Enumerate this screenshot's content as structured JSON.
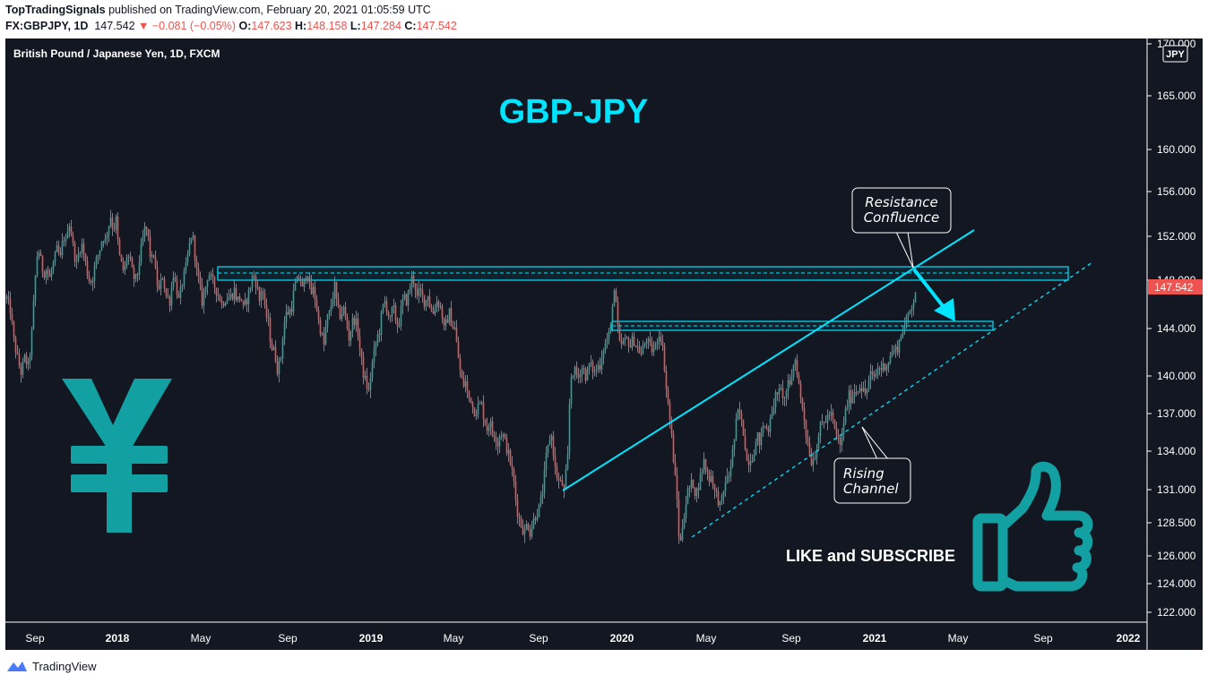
{
  "header": {
    "publisher": "TopTradingSignals",
    "published_text": "published on TradingView.com, February 20, 2021 01:05:59 UTC",
    "symbol": "FX:GBPJPY, 1D",
    "last": "147.542",
    "change": "▼ −0.081 (−0.05%)",
    "open_label": "O:",
    "open": "147.623",
    "high_label": "H:",
    "high": "148.158",
    "low_label": "L:",
    "low": "147.284",
    "close_label": "C:",
    "close": "147.542"
  },
  "footer": {
    "brand": "TradingView"
  },
  "colors": {
    "background": "#131722",
    "up": "#26a69a",
    "down": "#ef5350",
    "accent": "#00e5ff",
    "icon": "#13a0a3"
  },
  "chart_data": {
    "type": "candlestick",
    "title": "British Pound / Japanese Yen, 1D, FXCM",
    "headline": "GBP-JPY",
    "currency_badge": "JPY",
    "last_price_label": "147.542",
    "yticks": [
      "170.000",
      "165.000",
      "160.000",
      "156.000",
      "152.000",
      "148.000",
      "144.000",
      "140.000",
      "137.000",
      "134.000",
      "131.000",
      "128.500",
      "126.000",
      "124.000",
      "122.000"
    ],
    "xticks": [
      "Sep",
      "2018",
      "May",
      "Sep",
      "2019",
      "May",
      "Sep",
      "2020",
      "May",
      "Sep",
      "2021",
      "May",
      "Sep",
      "2022"
    ],
    "annotations": [
      {
        "text_line1": "Resistance",
        "text_line2": "Confluence"
      },
      {
        "text_line1": "Rising",
        "text_line2": "Channel"
      }
    ],
    "cta": "LIKE and SUBSCRIBE",
    "price_path": [
      [
        0,
        146.5
      ],
      [
        4,
        145.5
      ],
      [
        8,
        143
      ],
      [
        12,
        141.5
      ],
      [
        16,
        140.3
      ],
      [
        20,
        141.5
      ],
      [
        24,
        140.8
      ],
      [
        27,
        142.5
      ],
      [
        30,
        146
      ],
      [
        33,
        149.5
      ],
      [
        35,
        151
      ],
      [
        38,
        149.8
      ],
      [
        41,
        148.5
      ],
      [
        44,
        149
      ],
      [
        48,
        148.2
      ],
      [
        52,
        149.5
      ],
      [
        56,
        150.8
      ],
      [
        60,
        150
      ],
      [
        63,
        152
      ],
      [
        66,
        151.5
      ],
      [
        69,
        153.5
      ],
      [
        72,
        152.3
      ],
      [
        75,
        150.5
      ],
      [
        78,
        149.5
      ],
      [
        81,
        150.8
      ],
      [
        84,
        151.2
      ],
      [
        87,
        150
      ],
      [
        91,
        148.2
      ],
      [
        95,
        147.8
      ],
      [
        99,
        149.6
      ],
      [
        103,
        150.5
      ],
      [
        107,
        152
      ],
      [
        110,
        151.6
      ],
      [
        113,
        152.7
      ],
      [
        116,
        153.8
      ],
      [
        119,
        152.5
      ],
      [
        122,
        153.5
      ],
      [
        125,
        150.5
      ],
      [
        128,
        149.5
      ],
      [
        131,
        148.6
      ],
      [
        134,
        150.2
      ],
      [
        137,
        150
      ],
      [
        140,
        148.8
      ],
      [
        143,
        147.9
      ],
      [
        146,
        148.6
      ],
      [
        149,
        150.4
      ],
      [
        152,
        151.8
      ],
      [
        155,
        153
      ],
      [
        158,
        151.8
      ],
      [
        161,
        149.6
      ],
      [
        164,
        150.4
      ],
      [
        167,
        148
      ],
      [
        170,
        147.1
      ],
      [
        174,
        148.4
      ],
      [
        178,
        146.7
      ],
      [
        182,
        146.3
      ],
      [
        186,
        148.6
      ],
      [
        189,
        147.6
      ],
      [
        192,
        146.3
      ],
      [
        196,
        147.8
      ],
      [
        200,
        149.2
      ],
      [
        204,
        151.2
      ],
      [
        207,
        152.5
      ],
      [
        209,
        151
      ],
      [
        212,
        148.8
      ],
      [
        215,
        147.7
      ],
      [
        218,
        146.2
      ],
      [
        222,
        147.5
      ],
      [
        225,
        148.7
      ],
      [
        229,
        148
      ],
      [
        233,
        147.3
      ],
      [
        237,
        146.7
      ],
      [
        240,
        146
      ],
      [
        243,
        146.4
      ],
      [
        247,
        146.6
      ],
      [
        251,
        146.7
      ],
      [
        254,
        147.2
      ],
      [
        257,
        146.3
      ],
      [
        261,
        146.7
      ],
      [
        264,
        145.6
      ],
      [
        268,
        146.4
      ],
      [
        271,
        147.2
      ],
      [
        275,
        148.6
      ],
      [
        279,
        147.6
      ],
      [
        282,
        146.3
      ],
      [
        285,
        147.7
      ],
      [
        288,
        145.5
      ],
      [
        292,
        144.5
      ],
      [
        295,
        142.5
      ],
      [
        299,
        142
      ],
      [
        302,
        140.6
      ],
      [
        306,
        141.6
      ],
      [
        309,
        144.2
      ],
      [
        312,
        145.2
      ],
      [
        315,
        145.4
      ],
      [
        318,
        145.8
      ],
      [
        321,
        147.4
      ],
      [
        324,
        147.9
      ],
      [
        327,
        148.4
      ],
      [
        330,
        147.2
      ],
      [
        333,
        148.2
      ],
      [
        336,
        148.7
      ],
      [
        339,
        146.8
      ],
      [
        342,
        147.2
      ],
      [
        345,
        146.2
      ],
      [
        348,
        144.6
      ],
      [
        351,
        143.6
      ],
      [
        354,
        142.6
      ],
      [
        357,
        144.7
      ],
      [
        360,
        145.2
      ],
      [
        363,
        146.3
      ],
      [
        366,
        147.5
      ],
      [
        369,
        145.6
      ],
      [
        372,
        145.1
      ],
      [
        376,
        145.6
      ],
      [
        379,
        144.5
      ],
      [
        382,
        143.2
      ],
      [
        386,
        144.6
      ],
      [
        389,
        144.8
      ],
      [
        392,
        143.6
      ],
      [
        395,
        141.7
      ],
      [
        398,
        140.2
      ],
      [
        401,
        139.4
      ],
      [
        404,
        138.7
      ],
      [
        407,
        140.6
      ],
      [
        410,
        142
      ],
      [
        413,
        143.2
      ],
      [
        416,
        143.8
      ],
      [
        419,
        145.6
      ],
      [
        422,
        146.2
      ],
      [
        425,
        145.5
      ],
      [
        428,
        144.6
      ],
      [
        431,
        145.9
      ],
      [
        434,
        144.8
      ],
      [
        437,
        144.1
      ],
      [
        440,
        145.5
      ],
      [
        443,
        146.6
      ],
      [
        446,
        146.3
      ],
      [
        449,
        147
      ],
      [
        452,
        148.2
      ],
      [
        455,
        147.9
      ],
      [
        458,
        146.5
      ],
      [
        461,
        147.2
      ],
      [
        464,
        146.6
      ],
      [
        467,
        146.1
      ],
      [
        470,
        146.9
      ],
      [
        473,
        145.5
      ],
      [
        476,
        145.3
      ],
      [
        479,
        146.3
      ],
      [
        482,
        146.1
      ],
      [
        485,
        145.6
      ],
      [
        488,
        143.9
      ],
      [
        491,
        144.6
      ],
      [
        494,
        145.3
      ],
      [
        497,
        144.2
      ],
      [
        500,
        144
      ],
      [
        503,
        142.1
      ],
      [
        506,
        140.4
      ],
      [
        509,
        139.2
      ],
      [
        512,
        139.5
      ],
      [
        515,
        138.3
      ],
      [
        518,
        138.2
      ],
      [
        521,
        137.2
      ],
      [
        524,
        137.3
      ],
      [
        527,
        137.7
      ],
      [
        530,
        137.7
      ],
      [
        533,
        136.5
      ],
      [
        536,
        135.8
      ],
      [
        539,
        136.4
      ],
      [
        542,
        135.4
      ],
      [
        545,
        135.4
      ],
      [
        548,
        134.6
      ],
      [
        551,
        135.6
      ],
      [
        554,
        135.2
      ],
      [
        557,
        134.5
      ],
      [
        560,
        133.7
      ],
      [
        563,
        132.8
      ],
      [
        566,
        131.5
      ],
      [
        569,
        129.7
      ],
      [
        572,
        128.8
      ],
      [
        575,
        128.2
      ],
      [
        578,
        127.7
      ],
      [
        581,
        128.6
      ],
      [
        584,
        127.8
      ],
      [
        587,
        128.5
      ],
      [
        590,
        129.1
      ],
      [
        593,
        129.4
      ],
      [
        596,
        130.1
      ],
      [
        599,
        131.4
      ],
      [
        602,
        133.5
      ],
      [
        605,
        134.6
      ],
      [
        607,
        135.6
      ],
      [
        609,
        134.7
      ],
      [
        612,
        132.6
      ],
      [
        615,
        131.8
      ],
      [
        617,
        131.5
      ],
      [
        620,
        131.4
      ],
      [
        622,
        130.8
      ],
      [
        626,
        133.5
      ],
      [
        629,
        139.8
      ],
      [
        632,
        140.4
      ],
      [
        635,
        140.3
      ],
      [
        638,
        139.9
      ],
      [
        641,
        140.8
      ],
      [
        644,
        140.5
      ],
      [
        647,
        139.8
      ],
      [
        650,
        141
      ],
      [
        653,
        140.7
      ],
      [
        656,
        140.3
      ],
      [
        659,
        140.8
      ],
      [
        662,
        140.9
      ],
      [
        665,
        142.2
      ],
      [
        668,
        142.7
      ],
      [
        671,
        143.2
      ],
      [
        674,
        144.1
      ],
      [
        677,
        147.2
      ],
      [
        679,
        147.1
      ],
      [
        681,
        144.5
      ],
      [
        684,
        142.6
      ],
      [
        687,
        142.7
      ],
      [
        690,
        142.9
      ],
      [
        693,
        143.1
      ],
      [
        696,
        142.5
      ],
      [
        699,
        143.2
      ],
      [
        702,
        142.6
      ],
      [
        705,
        142.3
      ],
      [
        708,
        141.8
      ],
      [
        711,
        142.5
      ],
      [
        714,
        143.2
      ],
      [
        717,
        142.5
      ],
      [
        720,
        142.2
      ],
      [
        724,
        142.4
      ],
      [
        727,
        143.6
      ],
      [
        730,
        143.3
      ],
      [
        733,
        141.7
      ],
      [
        736,
        139
      ],
      [
        739,
        137.2
      ],
      [
        742,
        135.1
      ],
      [
        745,
        132.6
      ],
      [
        748,
        130.2
      ],
      [
        751,
        126.4
      ],
      [
        754,
        128.3
      ],
      [
        757,
        129.7
      ],
      [
        760,
        130.8
      ],
      [
        763,
        131.3
      ],
      [
        766,
        131.5
      ],
      [
        769,
        130.6
      ],
      [
        772,
        131.4
      ],
      [
        775,
        132.3
      ],
      [
        778,
        133.2
      ],
      [
        781,
        132.5
      ],
      [
        784,
        131.9
      ],
      [
        787,
        132.2
      ],
      [
        790,
        130.8
      ],
      [
        793,
        130.5
      ],
      [
        796,
        129.8
      ],
      [
        799,
        130.3
      ],
      [
        802,
        131.8
      ],
      [
        805,
        131.7
      ],
      [
        808,
        133
      ],
      [
        811,
        134.4
      ],
      [
        814,
        136.2
      ],
      [
        817,
        137.4
      ],
      [
        820,
        136.2
      ],
      [
        823,
        135.2
      ],
      [
        826,
        133.2
      ],
      [
        829,
        133.4
      ],
      [
        832,
        133.6
      ],
      [
        835,
        134.4
      ],
      [
        838,
        135.1
      ],
      [
        841,
        134.6
      ],
      [
        844,
        136.1
      ],
      [
        847,
        135.8
      ],
      [
        850,
        135.8
      ],
      [
        853,
        137.4
      ],
      [
        856,
        137.2
      ],
      [
        859,
        139
      ],
      [
        862,
        138.6
      ],
      [
        865,
        138.8
      ],
      [
        868,
        138.1
      ],
      [
        871,
        139.3
      ],
      [
        874,
        139.1
      ],
      [
        877,
        140.6
      ],
      [
        880,
        141.4
      ],
      [
        883,
        139.9
      ],
      [
        886,
        138.1
      ],
      [
        889,
        137.3
      ],
      [
        892,
        135.3
      ],
      [
        895,
        134.3
      ],
      [
        898,
        133.2
      ],
      [
        901,
        133.5
      ],
      [
        904,
        134.5
      ],
      [
        907,
        135.7
      ],
      [
        910,
        136.2
      ],
      [
        913,
        136.4
      ],
      [
        916,
        136.7
      ],
      [
        919,
        137.1
      ],
      [
        922,
        136.3
      ],
      [
        925,
        135.3
      ],
      [
        928,
        134.8
      ],
      [
        931,
        134.4
      ],
      [
        934,
        136.4
      ],
      [
        937,
        137.4
      ],
      [
        940,
        138.4
      ],
      [
        943,
        138.2
      ],
      [
        946,
        138.9
      ],
      [
        949,
        138.8
      ],
      [
        952,
        139.4
      ],
      [
        955,
        138.8
      ],
      [
        958,
        138.6
      ],
      [
        961,
        139.2
      ],
      [
        964,
        140.1
      ],
      [
        967,
        139.8
      ],
      [
        970,
        140.2
      ],
      [
        973,
        140.8
      ],
      [
        976,
        140.6
      ],
      [
        979,
        140.9
      ],
      [
        982,
        141
      ],
      [
        985,
        141.4
      ],
      [
        988,
        142.1
      ],
      [
        991,
        142.1
      ],
      [
        994,
        142.4
      ],
      [
        997,
        143.2
      ],
      [
        1000,
        144
      ],
      [
        1003,
        144.3
      ],
      [
        1006,
        145.1
      ],
      [
        1009,
        145.8
      ],
      [
        1012,
        146.4
      ],
      [
        1015,
        147.5
      ]
    ]
  }
}
